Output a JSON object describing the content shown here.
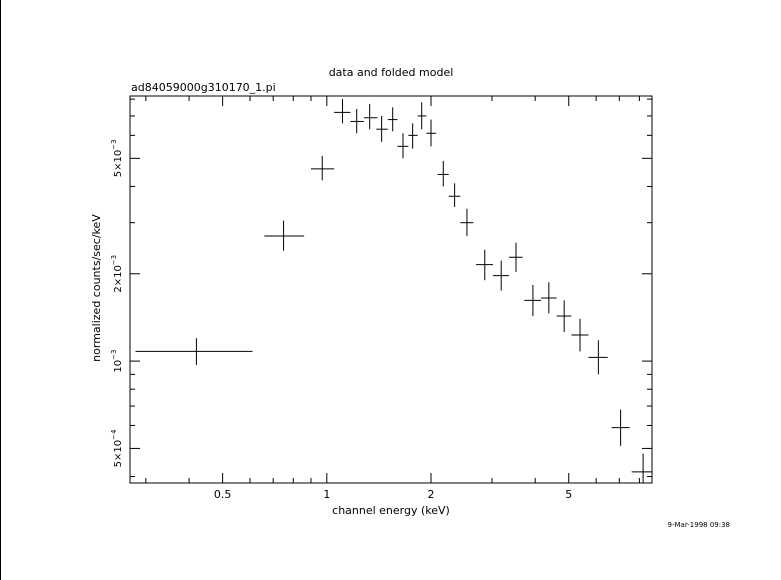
{
  "chart_data": {
    "type": "scatter",
    "title": "data and folded model",
    "subtitle": "ad84059000g310170_1.pi",
    "xlabel": "channel energy (keV)",
    "ylabel": "normalized counts/sec/keV",
    "x_scale": "log",
    "y_scale": "log",
    "xlim": [
      0.27,
      8.7
    ],
    "ylim": [
      0.00038,
      0.0082
    ],
    "x_ticks": [
      {
        "value": 0.5,
        "label": "0.5"
      },
      {
        "value": 1,
        "label": "1"
      },
      {
        "value": 2,
        "label": "2"
      },
      {
        "value": 5,
        "label": "5"
      }
    ],
    "y_ticks": [
      {
        "value": 0.0005,
        "mant": "5×10",
        "exp": "−4"
      },
      {
        "value": 0.001,
        "mant": "10",
        "exp": "−3"
      },
      {
        "value": 0.002,
        "mant": "2×10",
        "exp": "−3"
      },
      {
        "value": 0.005,
        "mant": "5×10",
        "exp": "−3"
      }
    ],
    "grid": false,
    "points": [
      {
        "x": 0.42,
        "xlo": 0.28,
        "xhi": 0.61,
        "y": 0.00108,
        "ylo": 0.00097,
        "yhi": 0.0012
      },
      {
        "x": 0.75,
        "xlo": 0.66,
        "xhi": 0.86,
        "y": 0.0027,
        "ylo": 0.0024,
        "yhi": 0.00305
      },
      {
        "x": 0.97,
        "xlo": 0.9,
        "xhi": 1.05,
        "y": 0.0046,
        "ylo": 0.0042,
        "yhi": 0.0051
      },
      {
        "x": 1.11,
        "xlo": 1.05,
        "xhi": 1.17,
        "y": 0.0072,
        "ylo": 0.0066,
        "yhi": 0.008
      },
      {
        "x": 1.22,
        "xlo": 1.17,
        "xhi": 1.28,
        "y": 0.0067,
        "ylo": 0.0061,
        "yhi": 0.0074
      },
      {
        "x": 1.33,
        "xlo": 1.28,
        "xhi": 1.4,
        "y": 0.0069,
        "ylo": 0.0063,
        "yhi": 0.0077
      },
      {
        "x": 1.44,
        "xlo": 1.39,
        "xhi": 1.5,
        "y": 0.0063,
        "ylo": 0.0057,
        "yhi": 0.007
      },
      {
        "x": 1.55,
        "xlo": 1.5,
        "xhi": 1.6,
        "y": 0.0068,
        "ylo": 0.0062,
        "yhi": 0.0075
      },
      {
        "x": 1.66,
        "xlo": 1.6,
        "xhi": 1.72,
        "y": 0.0055,
        "ylo": 0.005,
        "yhi": 0.0061
      },
      {
        "x": 1.77,
        "xlo": 1.72,
        "xhi": 1.83,
        "y": 0.006,
        "ylo": 0.0054,
        "yhi": 0.0066
      },
      {
        "x": 1.88,
        "xlo": 1.83,
        "xhi": 1.94,
        "y": 0.007,
        "ylo": 0.0063,
        "yhi": 0.0078
      },
      {
        "x": 2.0,
        "xlo": 1.94,
        "xhi": 2.07,
        "y": 0.0061,
        "ylo": 0.0055,
        "yhi": 0.0068
      },
      {
        "x": 2.17,
        "xlo": 2.09,
        "xhi": 2.25,
        "y": 0.0044,
        "ylo": 0.004,
        "yhi": 0.0049
      },
      {
        "x": 2.34,
        "xlo": 2.25,
        "xhi": 2.43,
        "y": 0.0037,
        "ylo": 0.0034,
        "yhi": 0.0041
      },
      {
        "x": 2.54,
        "xlo": 2.43,
        "xhi": 2.65,
        "y": 0.003,
        "ylo": 0.0027,
        "yhi": 0.00335
      },
      {
        "x": 2.86,
        "xlo": 2.7,
        "xhi": 3.02,
        "y": 0.00215,
        "ylo": 0.0019,
        "yhi": 0.00242
      },
      {
        "x": 3.19,
        "xlo": 3.02,
        "xhi": 3.36,
        "y": 0.00197,
        "ylo": 0.00175,
        "yhi": 0.00222
      },
      {
        "x": 3.52,
        "xlo": 3.36,
        "xhi": 3.68,
        "y": 0.00228,
        "ylo": 0.00203,
        "yhi": 0.00256
      },
      {
        "x": 3.94,
        "xlo": 3.72,
        "xhi": 4.16,
        "y": 0.00162,
        "ylo": 0.00143,
        "yhi": 0.00183
      },
      {
        "x": 4.38,
        "xlo": 4.16,
        "xhi": 4.61,
        "y": 0.00165,
        "ylo": 0.00146,
        "yhi": 0.00187
      },
      {
        "x": 4.85,
        "xlo": 4.61,
        "xhi": 5.09,
        "y": 0.00143,
        "ylo": 0.00126,
        "yhi": 0.00162
      },
      {
        "x": 5.39,
        "xlo": 5.09,
        "xhi": 5.7,
        "y": 0.00123,
        "ylo": 0.00108,
        "yhi": 0.0014
      },
      {
        "x": 6.09,
        "xlo": 5.7,
        "xhi": 6.48,
        "y": 0.00103,
        "ylo": 0.0009,
        "yhi": 0.00118
      },
      {
        "x": 7.06,
        "xlo": 6.65,
        "xhi": 7.5,
        "y": 0.00059,
        "ylo": 0.00051,
        "yhi": 0.00068
      },
      {
        "x": 8.2,
        "xlo": 7.6,
        "xhi": 8.8,
        "y": 0.000415,
        "ylo": 0.00036,
        "yhi": 0.00048
      }
    ]
  },
  "footer": {
    "timestamp": "9-Mar-1998 09:38"
  }
}
